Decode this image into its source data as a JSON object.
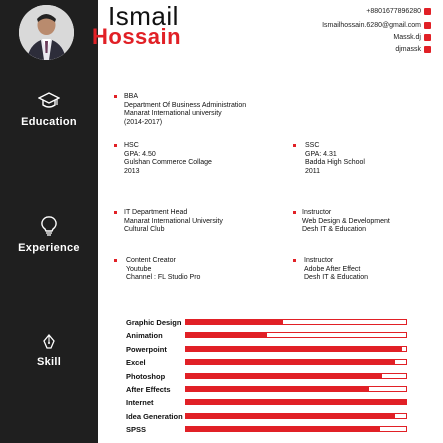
{
  "name": {
    "first": "Ismail",
    "last": "Hossain"
  },
  "contacts": [
    {
      "text": "+8801677896280",
      "icon": "phone-icon"
    },
    {
      "text": "Ismailhossain.6280@gmail.com",
      "icon": "email-icon"
    },
    {
      "text": "Massk.dj",
      "icon": "facebook-icon"
    },
    {
      "text": "djmassk",
      "icon": "linkedin-icon"
    }
  ],
  "sidebar": {
    "education_label": "Education",
    "experience_label": "Experience",
    "skill_label": "Skill"
  },
  "education": [
    {
      "lines": [
        "BBA",
        "Department Of Business Administration",
        "Manarat International university",
        "(2014-2017)"
      ]
    },
    {
      "lines": [
        "HSC",
        "GPA: 4.50",
        "Gulshan Commerce Collage",
        "2013"
      ]
    },
    {
      "lines": [
        "SSC",
        "GPA: 4.31",
        "Badda High School",
        "2011"
      ]
    }
  ],
  "experience": [
    {
      "lines": [
        "IT Department Head",
        "Manarat International University",
        "Cultural Club"
      ]
    },
    {
      "lines": [
        "Instructor",
        "Web Design & Development",
        "Desh IT & Education"
      ]
    },
    {
      "lines": [
        "Content Creator",
        "Youtube",
        "Channel : FL Studio Pro"
      ]
    },
    {
      "lines": [
        "Instructor",
        "Adobe After Effect",
        "Desh IT & Education"
      ]
    }
  ],
  "skills": [
    {
      "name": "Graphic Design",
      "level": 0.44
    },
    {
      "name": "Animation",
      "level": 0.37
    },
    {
      "name": "Powerpoint",
      "level": 0.98
    },
    {
      "name": "Excel",
      "level": 0.95
    },
    {
      "name": "Photoshop",
      "level": 0.89
    },
    {
      "name": "After Effects",
      "level": 0.83
    },
    {
      "name": "Internet",
      "level": 1.0
    },
    {
      "name": "Idea Generation",
      "level": 0.95
    },
    {
      "name": "SPSS",
      "level": 0.88
    }
  ],
  "colors": {
    "accent": "#e12026",
    "sidebar": "#1f1f1f"
  }
}
